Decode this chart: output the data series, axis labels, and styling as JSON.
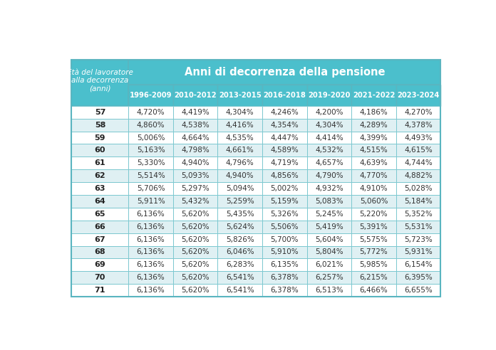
{
  "header_col_line1": "Età del lavoratore",
  "header_col_line2": "alla decorrenza",
  "header_col_line3": "(anni)",
  "header_span": "Anni di decorrenza della pensione",
  "col_headers": [
    "1996-2009",
    "2010-2012",
    "2013-2015",
    "2016-2018",
    "2019-2020",
    "2021-2022",
    "2023-2024"
  ],
  "rows": [
    {
      "age": "57",
      "values": [
        "4,720%",
        "4,419%",
        "4,304%",
        "4,246%",
        "4,200%",
        "4,186%",
        "4,270%"
      ]
    },
    {
      "age": "58",
      "values": [
        "4,860%",
        "4,538%",
        "4,416%",
        "4,354%",
        "4,304%",
        "4,289%",
        "4,378%"
      ]
    },
    {
      "age": "59",
      "values": [
        "5,006%",
        "4,664%",
        "4,535%",
        "4,447%",
        "4,414%",
        "4,399%",
        "4,493%"
      ]
    },
    {
      "age": "60",
      "values": [
        "5,163%",
        "4,798%",
        "4,661%",
        "4,589%",
        "4,532%",
        "4,515%",
        "4,615%"
      ]
    },
    {
      "age": "61",
      "values": [
        "5,330%",
        "4,940%",
        "4,796%",
        "4,719%",
        "4,657%",
        "4,639%",
        "4,744%"
      ]
    },
    {
      "age": "62",
      "values": [
        "5,514%",
        "5,093%",
        "4,940%",
        "4,856%",
        "4,790%",
        "4,770%",
        "4,882%"
      ]
    },
    {
      "age": "63",
      "values": [
        "5,706%",
        "5,297%",
        "5,094%",
        "5,002%",
        "4,932%",
        "4,910%",
        "5,028%"
      ]
    },
    {
      "age": "64",
      "values": [
        "5,911%",
        "5,432%",
        "5,259%",
        "5,159%",
        "5,083%",
        "5,060%",
        "5,184%"
      ]
    },
    {
      "age": "65",
      "values": [
        "6,136%",
        "5,620%",
        "5,435%",
        "5,326%",
        "5,245%",
        "5,220%",
        "5,352%"
      ]
    },
    {
      "age": "66",
      "values": [
        "6,136%",
        "5,620%",
        "5,624%",
        "5,506%",
        "5,419%",
        "5,391%",
        "5,531%"
      ]
    },
    {
      "age": "67",
      "values": [
        "6,136%",
        "5,620%",
        "5,826%",
        "5,700%",
        "5,604%",
        "5,575%",
        "5,723%"
      ]
    },
    {
      "age": "68",
      "values": [
        "6,136%",
        "5,620%",
        "6,046%",
        "5,910%",
        "5,804%",
        "5,772%",
        "5,931%"
      ]
    },
    {
      "age": "69",
      "values": [
        "6,136%",
        "5,620%",
        "6,283%",
        "6,135%",
        "6,021%",
        "5,985%",
        "6,154%"
      ]
    },
    {
      "age": "70",
      "values": [
        "6,136%",
        "5,620%",
        "6,541%",
        "6,378%",
        "6,257%",
        "6,215%",
        "6,395%"
      ]
    },
    {
      "age": "71",
      "values": [
        "6,136%",
        "5,620%",
        "6,541%",
        "6,378%",
        "6,513%",
        "6,466%",
        "6,655%"
      ]
    }
  ],
  "header_bg": "#4bbfcc",
  "subheader_bg": "#4bbfcc",
  "row_bg_odd": "#ffffff",
  "row_bg_even": "#dff0f3",
  "border_color": "#7cc8d0",
  "text_color_header": "#ffffff",
  "text_color_data": "#333333",
  "text_color_age": "#222222",
  "outer_border": "#5ab5c0",
  "fig_bg": "#ffffff"
}
